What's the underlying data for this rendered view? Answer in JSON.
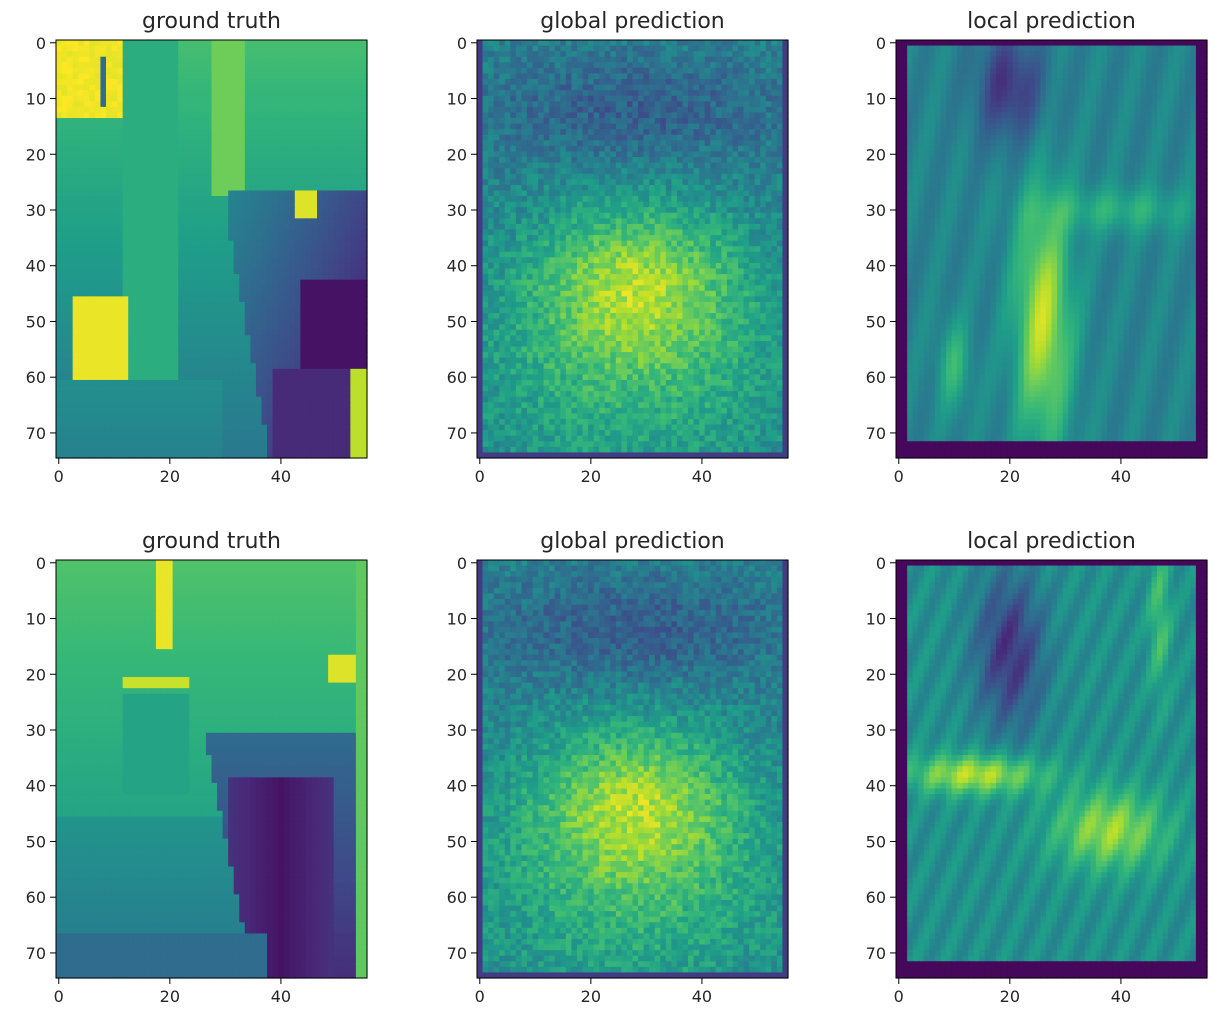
{
  "chart_data": [
    {
      "type": "heatmap",
      "title": "ground truth",
      "colormap": "viridis",
      "grid": false,
      "xlim": [
        0,
        55
      ],
      "ylim": [
        74,
        0
      ],
      "xticks": [
        0,
        20,
        40
      ],
      "yticks": [
        0,
        10,
        20,
        30,
        40,
        50,
        60,
        70
      ],
      "sample": 1,
      "description": "Depth map: bright yellow upper-left strip and lower-left block, green/cyan background, dark blue-purple object in lower right."
    },
    {
      "type": "heatmap",
      "title": "global prediction",
      "colormap": "viridis",
      "grid": false,
      "xlim": [
        0,
        55
      ],
      "ylim": [
        74,
        0
      ],
      "xticks": [
        0,
        20,
        40
      ],
      "yticks": [
        0,
        10,
        20,
        30,
        40,
        50,
        60,
        70
      ],
      "sample": 1,
      "description": "Blurry prediction: teal top half, yellow-green blob centered around rows 40-45."
    },
    {
      "type": "heatmap",
      "title": "local prediction",
      "colormap": "viridis",
      "grid": false,
      "xlim": [
        0,
        55
      ],
      "ylim": [
        74,
        0
      ],
      "xticks": [
        0,
        20,
        40
      ],
      "yticks": [
        0,
        10,
        20,
        30,
        40,
        50,
        60,
        70
      ],
      "sample": 1,
      "description": "Sharper prediction with dark purple border, dark top-center block, yellow vertical band in center-bottom."
    },
    {
      "type": "heatmap",
      "title": "ground truth",
      "colormap": "viridis",
      "grid": false,
      "xlim": [
        0,
        55
      ],
      "ylim": [
        74,
        0
      ],
      "xticks": [
        0,
        20,
        40
      ],
      "yticks": [
        0,
        10,
        20,
        30,
        40,
        50,
        60,
        70
      ],
      "sample": 2,
      "description": "Depth map: green background, yellow narrow vertical strip top-center, dark purple wedge lower-right."
    },
    {
      "type": "heatmap",
      "title": "global prediction",
      "colormap": "viridis",
      "grid": false,
      "xlim": [
        0,
        55
      ],
      "ylim": [
        74,
        0
      ],
      "xticks": [
        0,
        20,
        40
      ],
      "yticks": [
        0,
        10,
        20,
        30,
        40,
        50,
        60,
        70
      ],
      "sample": 2,
      "description": "Blurry prediction similar to sample 1: teal top, yellow-green middle."
    },
    {
      "type": "heatmap",
      "title": "local prediction",
      "colormap": "viridis",
      "grid": false,
      "xlim": [
        0,
        55
      ],
      "ylim": [
        74,
        0
      ],
      "xticks": [
        0,
        20,
        40
      ],
      "yticks": [
        0,
        10,
        20,
        30,
        40,
        50,
        60,
        70
      ],
      "sample": 2,
      "description": "Purple border, dark center-top blob, yellow horizontal band left around row 38, yellow patch lower right."
    }
  ],
  "colors": {
    "viridis_dark": "#440154",
    "viridis_blue": "#31688e",
    "viridis_teal": "#21918c",
    "viridis_green": "#5ec962",
    "viridis_yellow": "#fde725"
  }
}
